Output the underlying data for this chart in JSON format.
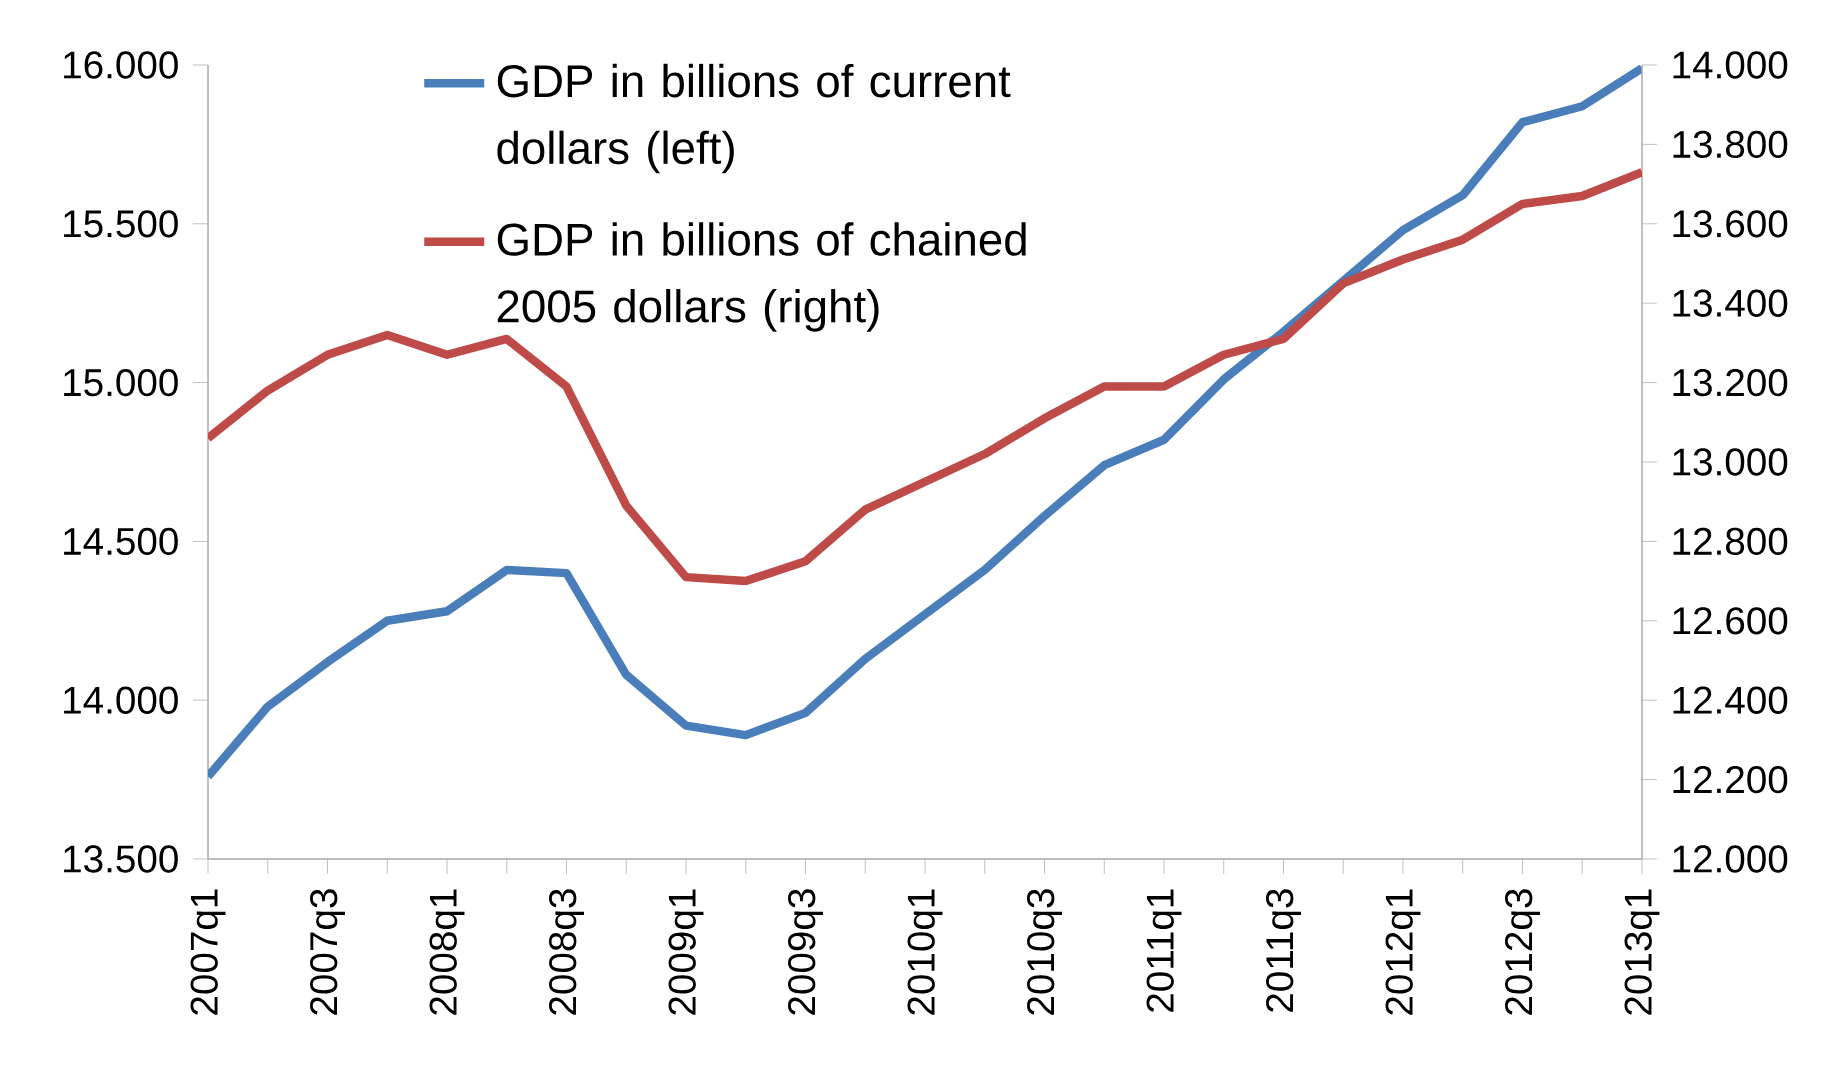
{
  "chart_data": {
    "type": "line",
    "categories": [
      "2007q1",
      null,
      "2007q3",
      null,
      "2008q1",
      null,
      "2008q3",
      null,
      "2009q1",
      null,
      "2009q3",
      null,
      "2010q1",
      null,
      "2010q3",
      null,
      "2011q1",
      null,
      "2011q3",
      null,
      "2012q1",
      null,
      "2012q3",
      null,
      "2013q1"
    ],
    "series": [
      {
        "name": "GDP in billions of current dollars (left)",
        "color": "#4a7ebb",
        "values": [
          13760,
          13980,
          14120,
          14250,
          14280,
          14410,
          14400,
          14080,
          13920,
          13890,
          13960,
          14130,
          14270,
          14410,
          14580,
          14740,
          14820,
          15010,
          15160,
          15320,
          15480,
          15590,
          15820,
          15870,
          15990
        ]
      },
      {
        "name": "GDP in billions of chained 2005 dollars (right)",
        "color": "#be4b48",
        "axis": "y2",
        "values": [
          13060,
          13180,
          13270,
          13320,
          13270,
          13310,
          13190,
          12890,
          12710,
          12700,
          12750,
          12880,
          12950,
          13020,
          13110,
          13190,
          13190,
          13270,
          13310,
          13450,
          13510,
          13560,
          13650,
          13670,
          13730
        ]
      }
    ],
    "ylim": [
      13500,
      16000
    ],
    "yticks": [
      {
        "value": 13500,
        "label": "13.500"
      },
      {
        "value": 14000,
        "label": "14.000"
      },
      {
        "value": 14500,
        "label": "14.500"
      },
      {
        "value": 15000,
        "label": "15.000"
      },
      {
        "value": 15500,
        "label": "15.500"
      },
      {
        "value": 16000,
        "label": "16.000"
      }
    ],
    "y2lim": [
      12000,
      14000
    ],
    "y2ticks": [
      {
        "value": 12000,
        "label": "12.000"
      },
      {
        "value": 12200,
        "label": "12.200"
      },
      {
        "value": 12400,
        "label": "12.400"
      },
      {
        "value": 12600,
        "label": "12.600"
      },
      {
        "value": 12800,
        "label": "12.800"
      },
      {
        "value": 13000,
        "label": "13.000"
      },
      {
        "value": 13200,
        "label": "13.200"
      },
      {
        "value": 13400,
        "label": "13.400"
      },
      {
        "value": 13600,
        "label": "13.600"
      },
      {
        "value": 13800,
        "label": "13.800"
      },
      {
        "value": 14000,
        "label": "14.000"
      }
    ],
    "legend": "top left",
    "grid": false
  }
}
